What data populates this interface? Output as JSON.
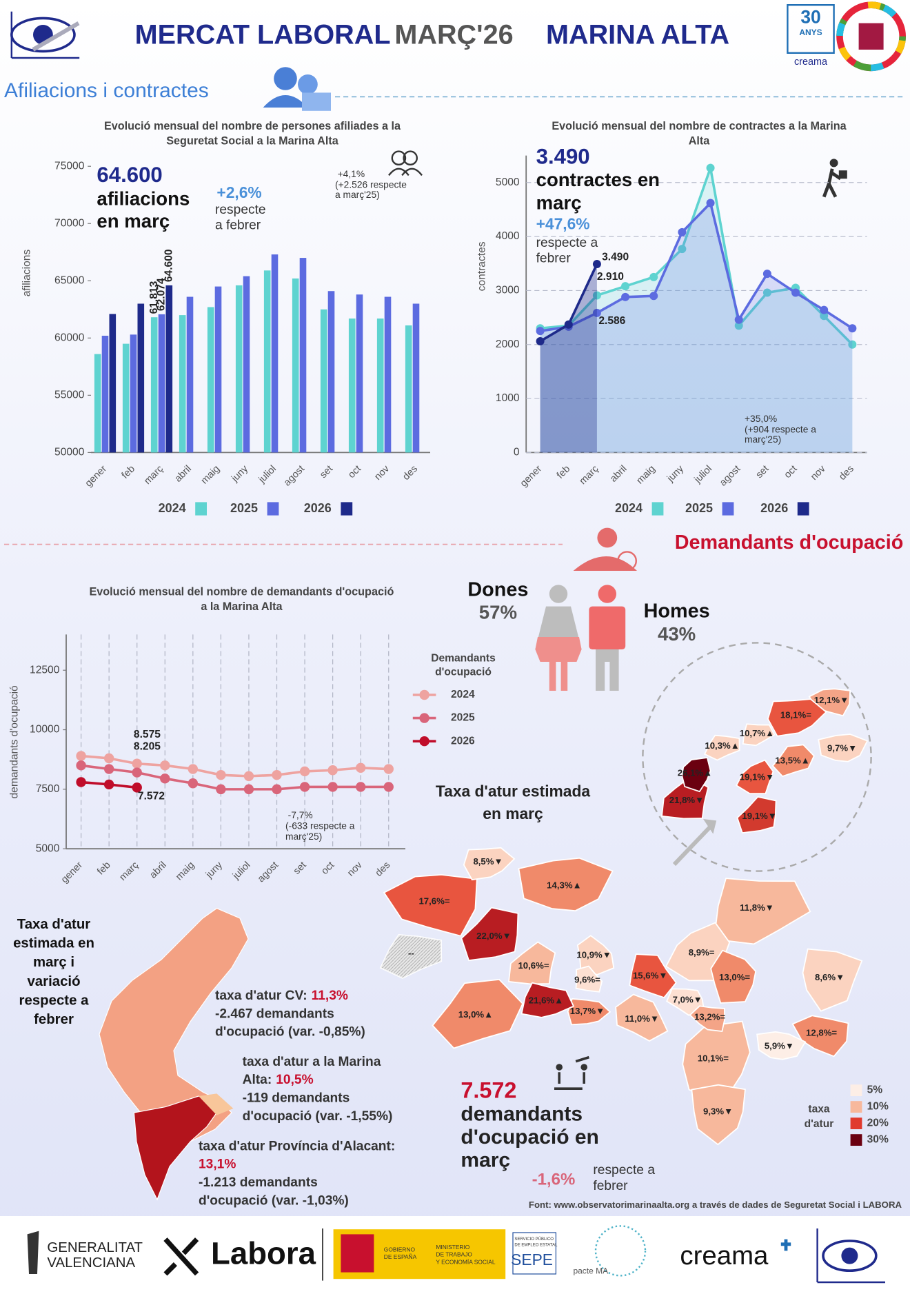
{
  "header": {
    "title": [
      "MERCAT LABORAL",
      "MARÇ'26",
      "MARINA ALTA"
    ],
    "badge": [
      "30",
      "ANYS"
    ],
    "badge_brand": "creama"
  },
  "sections": [
    "Afiliacions i contractes",
    "Demandants d'ocupació"
  ],
  "chart_data": [
    {
      "type": "bar",
      "title": [
        "Evolució mensual del nombre de persones afiliades a la",
        "Seguretat Social a la Marina Alta"
      ],
      "y_label": "afiliacions",
      "categories": [
        "gener",
        "feb",
        "març",
        "abril",
        "maig",
        "juny",
        "juliol",
        "agost",
        "set",
        "oct",
        "nov",
        "des"
      ],
      "series": [
        {
          "name": "2024",
          "color": "#5ed3d0",
          "values": [
            58600,
            59500,
            61813,
            62000,
            62700,
            64600,
            65900,
            65200,
            62500,
            61700,
            61700,
            61100
          ],
          "value_labels": [
            null,
            null,
            "61.813",
            null,
            null,
            null,
            null,
            null,
            null,
            null,
            null,
            null
          ]
        },
        {
          "name": "2025",
          "color": "#5c6be0",
          "values": [
            60200,
            60300,
            62074,
            63600,
            64500,
            65400,
            67300,
            67000,
            64100,
            63800,
            63600,
            63000
          ],
          "value_labels": [
            null,
            null,
            "62.074",
            null,
            null,
            null,
            null,
            null,
            null,
            null,
            null,
            null
          ]
        },
        {
          "name": "2026",
          "color": "#1e2a8a",
          "values": [
            62100,
            63000,
            64600,
            null,
            null,
            null,
            null,
            null,
            null,
            null,
            null,
            null
          ],
          "value_labels": [
            null,
            null,
            "64.600",
            null,
            null,
            null,
            null,
            null,
            null,
            null,
            null,
            null
          ]
        }
      ],
      "ylim": [
        50000,
        75000
      ],
      "yticks": [
        50000,
        55000,
        60000,
        65000,
        70000,
        75000
      ],
      "grid": false,
      "legend": "bottom",
      "annotations": [
        "64.600",
        "afiliacions",
        "en març",
        "+2,6%",
        "respecte",
        "a febrer",
        "+4,1%",
        "(+2.526 respecte",
        "a març'25)"
      ]
    },
    {
      "type": "line",
      "title": [
        "Evolució mensual del nombre de contractes a la Marina",
        "Alta"
      ],
      "y_label": "contractes",
      "area": true,
      "categories": [
        "gener",
        "feb",
        "març",
        "abril",
        "maig",
        "juny",
        "juliol",
        "agost",
        "set",
        "oct",
        "nov",
        "des"
      ],
      "series": [
        {
          "name": "2024",
          "color": "#5ed3d0",
          "values": [
            2300,
            2350,
            2910,
            3080,
            3250,
            3770,
            5270,
            2350,
            2960,
            3050,
            2530,
            2000
          ],
          "value_labels": [
            null,
            null,
            "2.910",
            null,
            null,
            null,
            null,
            null,
            null,
            null,
            null,
            null
          ]
        },
        {
          "name": "2025",
          "color": "#5c6be0",
          "values": [
            2250,
            2330,
            2586,
            2880,
            2900,
            4080,
            4620,
            2460,
            3310,
            2960,
            2640,
            2300
          ],
          "value_labels": [
            null,
            null,
            "2.586",
            null,
            null,
            null,
            null,
            null,
            null,
            null,
            null,
            null
          ]
        },
        {
          "name": "2026",
          "color": "#1e2a8a",
          "values": [
            2060,
            2370,
            3490,
            null,
            null,
            null,
            null,
            null,
            null,
            null,
            null,
            null
          ],
          "value_labels": [
            null,
            null,
            "3.490",
            null,
            null,
            null,
            null,
            null,
            null,
            null,
            null,
            null
          ]
        }
      ],
      "ylim": [
        0,
        5500
      ],
      "yticks": [
        0,
        1000,
        2000,
        3000,
        4000,
        5000
      ],
      "grid": "y",
      "legend": "bottom",
      "annotations": [
        "3.490",
        "contractes en",
        "març",
        "+47,6%",
        "respecte a",
        "febrer",
        "+35,0%",
        "(+904 respecte a",
        "març'25)"
      ]
    },
    {
      "type": "line",
      "title": [
        "Evolució mensual del nombre de demandants d'ocupació",
        "a la Marina Alta"
      ],
      "y_label": "demandants d'ocupació",
      "categories": [
        "gener",
        "feb",
        "març",
        "abril",
        "maig",
        "juny",
        "juliol",
        "agost",
        "set",
        "oct",
        "nov",
        "des"
      ],
      "series": [
        {
          "name": "2024",
          "color": "#eea3a0",
          "values": [
            8900,
            8800,
            8575,
            8500,
            8350,
            8100,
            8050,
            8100,
            8250,
            8300,
            8400,
            8350
          ],
          "value_labels": [
            null,
            null,
            "8.575",
            null,
            null,
            null,
            null,
            null,
            null,
            null,
            null,
            null
          ]
        },
        {
          "name": "2025",
          "color": "#d9657a",
          "values": [
            8500,
            8350,
            8205,
            7950,
            7750,
            7500,
            7500,
            7500,
            7600,
            7600,
            7600,
            7600
          ],
          "value_labels": [
            null,
            null,
            "8.205",
            null,
            null,
            null,
            null,
            null,
            null,
            null,
            null,
            null
          ]
        },
        {
          "name": "2026",
          "color": "#c00d2a",
          "values": [
            7800,
            7700,
            7572,
            null,
            null,
            null,
            null,
            null,
            null,
            null,
            null,
            null
          ],
          "value_labels": [
            null,
            null,
            "7.572",
            null,
            null,
            null,
            null,
            null,
            null,
            null,
            null,
            null
          ]
        }
      ],
      "ylim": [
        5000,
        14000
      ],
      "yticks": [
        5000,
        7500,
        10000,
        12500
      ],
      "grid": "x",
      "legend": "right",
      "legend_title": [
        "Demandants",
        "d'ocupació"
      ],
      "annotations": [
        "-7,7%",
        "(-633 respecte a",
        "març'25)"
      ]
    }
  ],
  "gender": {
    "women": {
      "label": "Dones",
      "value": "57%"
    },
    "men": {
      "label": "Homes",
      "value": "43%"
    }
  },
  "map": {
    "title": [
      "Taxa d'atur estimada",
      "en març"
    ],
    "regions": [
      {
        "label": "17,6%=",
        "color": "#e8553f"
      },
      {
        "label": "14,3%▲",
        "color": "#f08a6a"
      },
      {
        "label": "8,5%▼",
        "color": "#fbd3c0"
      },
      {
        "label": "11,8%▼",
        "color": "#f7b89c"
      },
      {
        "label": "--",
        "color": "#dcdcdc"
      },
      {
        "label": "13,0%▲",
        "color": "#f08a6a"
      },
      {
        "label": "22,0%▼",
        "color": "#b81d22"
      },
      {
        "label": "10,6%=",
        "color": "#f7b89c"
      },
      {
        "label": "8,9%=",
        "color": "#fbd3c0"
      },
      {
        "label": "10,1%=",
        "color": "#f7b89c"
      },
      {
        "label": "9,3%▼",
        "color": "#f7b89c"
      },
      {
        "label": "8,6%▼",
        "color": "#fbd3c0"
      },
      {
        "label": "13,0%=",
        "color": "#f08a6a"
      },
      {
        "label": "10,9%▼",
        "color": "#fbd3c0"
      },
      {
        "label": "9,6%=",
        "color": "#fde0d2"
      },
      {
        "label": "15,6%▼",
        "color": "#e8553f"
      },
      {
        "label": "11,0%▼",
        "color": "#f7b89c"
      },
      {
        "label": "7,0%▼",
        "color": "#fde0d2"
      },
      {
        "label": "13,2%=",
        "color": "#f4a487"
      },
      {
        "label": "12,8%=",
        "color": "#f08a6a"
      },
      {
        "label": "5,9%▼",
        "color": "#fdeee6"
      },
      {
        "label": "13,7%▼",
        "color": "#f08a6a"
      },
      {
        "label": "21,6%▲",
        "color": "#b81d22"
      }
    ],
    "inset": [
      {
        "label": "12,1%▼",
        "color": "#f4a487"
      },
      {
        "label": "9,7%▼",
        "color": "#fbd3c0"
      },
      {
        "label": "18,1%=",
        "color": "#e8553f"
      },
      {
        "label": "10,7%▲",
        "color": "#fbd3c0"
      },
      {
        "label": "10,3%▲",
        "color": "#fbd3c0"
      },
      {
        "label": "13,5%▲",
        "color": "#f08a6a"
      },
      {
        "label": "19,1%▼",
        "color": "#d23a2e"
      },
      {
        "label": "21,8%▼",
        "color": "#b81d22"
      },
      {
        "label": "19,1%▼",
        "color": "#e8553f"
      },
      {
        "label": "26,1%▲",
        "color": "#6b0010"
      }
    ],
    "legend": {
      "title": [
        "taxa",
        "d'atur"
      ],
      "items": [
        {
          "label": "5%",
          "color": "#fdeee6"
        },
        {
          "label": "10%",
          "color": "#f7b89c"
        },
        {
          "label": "20%",
          "color": "#e03a2e"
        },
        {
          "label": "30%",
          "color": "#6b0010"
        }
      ]
    }
  },
  "region_summary": {
    "title": [
      "Taxa d'atur",
      "estimada en",
      "març i",
      "variació",
      "respecte a",
      "febrer"
    ],
    "items": [
      {
        "label": [
          "taxa d'atur CV:"
        ],
        "value": "11,3%",
        "lines": [
          "-2.467 demandants",
          "d'ocupació (var. -0,85%)"
        ]
      },
      {
        "label": [
          "taxa d'atur a la Marina",
          "Alta:"
        ],
        "value": "10,5%",
        "lines": [
          "-119 demandants",
          "d'ocupació (var. -1,55%)"
        ]
      },
      {
        "label": [
          "taxa d'atur Província d'Alacant:"
        ],
        "value": "13,1%",
        "lines": [
          "-1.213 demandants",
          "d'ocupació (var. -1,03%)"
        ]
      }
    ]
  },
  "highlight": {
    "value": "7.572",
    "text": [
      "demandants",
      "d'ocupació en",
      "març"
    ],
    "change": "-1,6%",
    "change_text": [
      "respecte a",
      "febrer"
    ]
  },
  "source": "Font: www.observatorimarinaalta.org a través de dades de Seguretat Social i LABORA",
  "footer": {
    "generalitat": [
      "GENERALITAT",
      "VALENCIANA"
    ],
    "labora": "Labora",
    "gobierno": [
      "GOBIERNO",
      "DE ESPAÑA"
    ],
    "ministerio": [
      "MINISTERIO",
      "DE TRABAJO",
      "Y ECONOMÍA SOCIAL"
    ],
    "sepe_top": [
      "SERVICIO PÚBLICO",
      "DE EMPLEO ESTATAL"
    ],
    "sepe": "SEPE",
    "pacte": "pacte MA",
    "creama": "creama"
  }
}
